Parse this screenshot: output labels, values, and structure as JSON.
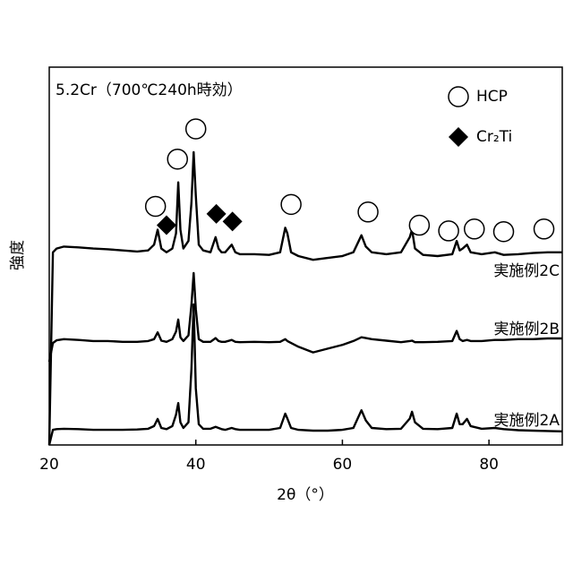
{
  "chart_data": {
    "type": "line",
    "annotation": "5.2Cr（700℃240h時効）",
    "x_label": "2θ（°）",
    "y_label": "強度",
    "x": [
      20,
      20.5,
      21,
      22,
      24,
      26,
      28,
      30,
      32,
      33.5,
      34.3,
      34.8,
      35.3,
      36,
      36.8,
      37.3,
      37.6,
      37.9,
      38.3,
      39,
      39.4,
      39.7,
      40.0,
      40.4,
      41,
      42,
      42.7,
      43.1,
      43.5,
      44,
      44.9,
      45.4,
      46,
      48,
      50,
      51.5,
      52.2,
      52.5,
      53,
      54,
      56,
      58,
      60,
      61.5,
      62.6,
      63.2,
      64,
      66,
      68,
      69.2,
      69.5,
      69.9,
      71,
      73,
      75,
      75.6,
      76,
      76.4,
      77,
      77.5,
      79,
      80.8,
      82,
      84,
      86,
      88,
      90
    ],
    "series": [
      {
        "name": "実施例2C",
        "color": "#000000",
        "values": [
          0,
          51,
          52,
          52.5,
          52.3,
          52,
          51.8,
          51.5,
          51.2,
          51.5,
          53,
          57,
          52,
          51,
          52,
          56,
          69.5,
          57,
          52,
          54,
          64,
          77.5,
          66,
          53,
          51.5,
          51,
          55,
          52,
          51,
          51,
          53,
          51,
          50.5,
          50.5,
          50.3,
          51,
          57.5,
          56,
          51,
          50,
          49,
          49.5,
          50,
          51,
          55.5,
          52.5,
          51,
          50.5,
          51,
          55,
          57,
          52,
          50.3,
          50,
          50.5,
          54,
          51.5,
          52,
          53,
          51,
          50.5,
          51,
          50.3,
          50.5,
          50.8,
          51,
          51
        ]
      },
      {
        "name": "実施例2B",
        "color": "#000000",
        "values": [
          22,
          27,
          27.7,
          28,
          27.8,
          27.5,
          27.5,
          27.3,
          27.3,
          27.5,
          28,
          29.8,
          27.6,
          27.3,
          28,
          30,
          33.2,
          28.5,
          27.5,
          29,
          37,
          45.5,
          36,
          28,
          27.3,
          27.3,
          28.3,
          27.5,
          27.3,
          27.3,
          27.8,
          27.3,
          27.2,
          27.3,
          27.2,
          27.3,
          28,
          27.5,
          27,
          26,
          24.5,
          25.5,
          26.5,
          27.5,
          28.5,
          28.3,
          28,
          27.6,
          27.2,
          27.5,
          27.6,
          27.2,
          27.2,
          27.3,
          27.5,
          30.2,
          28,
          27.5,
          27.8,
          27.5,
          27.5,
          27.8,
          27.8,
          28,
          28,
          28.2,
          28.2
        ]
      },
      {
        "name": "実施例2A",
        "color": "#000000",
        "values": [
          0,
          4,
          4.2,
          4.3,
          4.2,
          4,
          4,
          4,
          4.1,
          4.3,
          5,
          6.9,
          4.5,
          4.2,
          5,
          8,
          11.1,
          6,
          4.5,
          6,
          20,
          37.2,
          15,
          5.5,
          4.3,
          4.3,
          4.8,
          4.5,
          4.2,
          4,
          4.5,
          4.2,
          4,
          4,
          4,
          4.5,
          8.3,
          7,
          4.5,
          4,
          3.8,
          3.8,
          4,
          4.5,
          9.2,
          6.5,
          4.5,
          4.2,
          4.3,
          7,
          8.8,
          6,
          4.3,
          4.2,
          4.5,
          8.3,
          5.5,
          5.5,
          6.9,
          5,
          4.3,
          4.5,
          4.2,
          3.9,
          3.8,
          3.7,
          3.6
        ]
      }
    ],
    "markers": [
      {
        "name": "HCP",
        "shape": "circle",
        "x": [
          34.5,
          37.5,
          40,
          53,
          63.5,
          70.5,
          74.5,
          78,
          82,
          87.5
        ]
      },
      {
        "name": "Cr₂Ti",
        "shape": "diamond",
        "x": [
          36,
          42.8,
          45
        ]
      }
    ],
    "xlim": [
      20,
      90
    ],
    "xticks": [
      20,
      40,
      60,
      80
    ],
    "ylim": [
      0,
      100
    ]
  }
}
